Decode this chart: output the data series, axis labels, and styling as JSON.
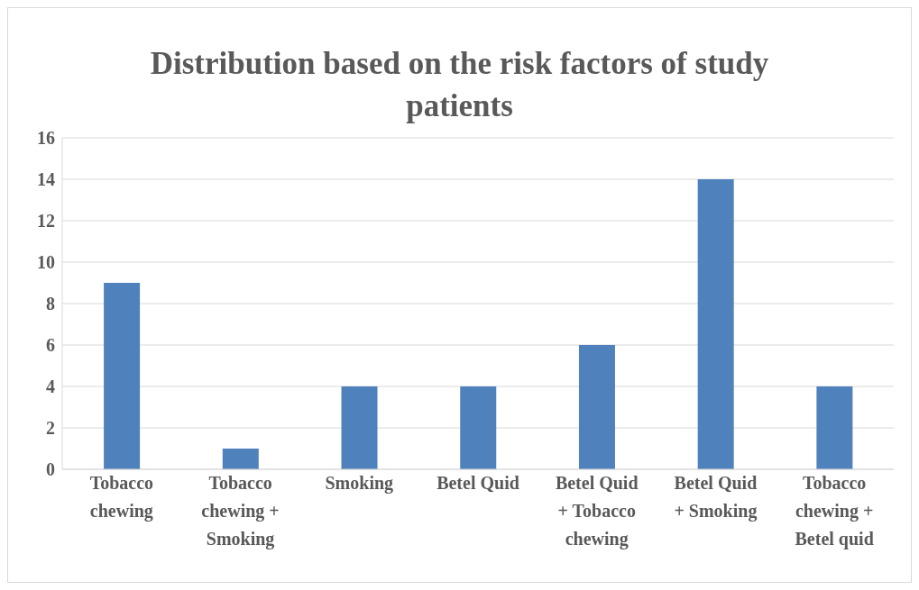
{
  "chart_data": {
    "type": "bar",
    "title": "Distribution based on the risk factors of study patients",
    "categories": [
      "Tobacco chewing",
      "Tobacco chewing + Smoking",
      "Smoking",
      "Betel Quid",
      "Betel Quid + Tobacco chewing",
      "Betel Quid + Smoking",
      "Tobacco chewing + Betel quid"
    ],
    "values": [
      9,
      1,
      4,
      4,
      6,
      14,
      4
    ],
    "color": "#4f81bd",
    "ylim": [
      0,
      16
    ],
    "yticks": [
      0,
      2,
      4,
      6,
      8,
      10,
      12,
      14,
      16
    ],
    "grid": "y",
    "legend": false
  }
}
